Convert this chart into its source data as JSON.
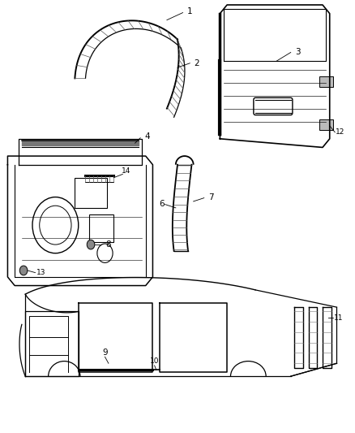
{
  "title": "",
  "background_color": "#ffffff",
  "line_color": "#000000",
  "label_color": "#000000",
  "fig_width": 4.38,
  "fig_height": 5.33,
  "dpi": 100
}
